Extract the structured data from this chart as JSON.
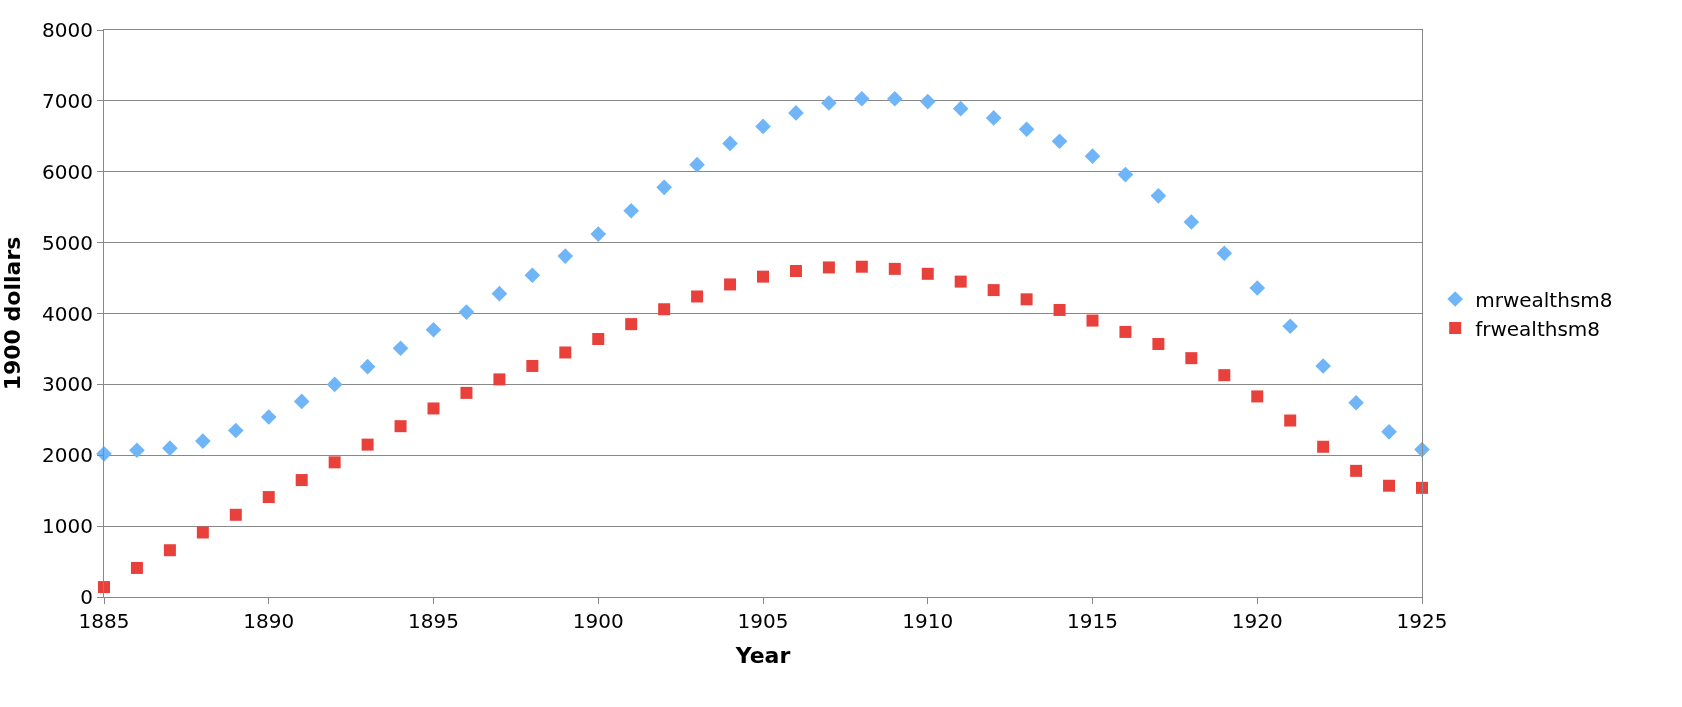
{
  "chart_data": {
    "type": "scatter",
    "xlabel": "Year",
    "ylabel": "1900 dollars",
    "x": [
      1885,
      1886,
      1887,
      1888,
      1889,
      1890,
      1891,
      1892,
      1893,
      1894,
      1895,
      1896,
      1897,
      1898,
      1899,
      1900,
      1901,
      1902,
      1903,
      1904,
      1905,
      1906,
      1907,
      1908,
      1909,
      1910,
      1911,
      1912,
      1913,
      1914,
      1915,
      1916,
      1917,
      1918,
      1919,
      1920,
      1921,
      1922,
      1923,
      1924,
      1925
    ],
    "series": [
      {
        "name": "mrwealthsm8",
        "color": "#6fb5f7",
        "marker": "diamond",
        "values": [
          2020,
          2070,
          2100,
          2200,
          2350,
          2540,
          2760,
          3000,
          3250,
          3510,
          3770,
          4020,
          4280,
          4540,
          4810,
          5120,
          5450,
          5780,
          6100,
          6400,
          6640,
          6830,
          6970,
          7030,
          7030,
          6990,
          6890,
          6760,
          6600,
          6430,
          6220,
          5960,
          5660,
          5290,
          4850,
          4360,
          3820,
          3260,
          2740,
          2330,
          2080
        ]
      },
      {
        "name": "frwealthsm8",
        "color": "#e8413c",
        "marker": "square",
        "values": [
          140,
          410,
          660,
          910,
          1160,
          1410,
          1650,
          1900,
          2150,
          2410,
          2660,
          2880,
          3070,
          3260,
          3450,
          3640,
          3850,
          4060,
          4240,
          4410,
          4520,
          4600,
          4650,
          4660,
          4630,
          4560,
          4450,
          4330,
          4200,
          4050,
          3900,
          3740,
          3570,
          3370,
          3130,
          2830,
          2490,
          2120,
          1780,
          1570,
          1540
        ]
      }
    ],
    "xlim": [
      1885,
      1925
    ],
    "xticks": [
      1885,
      1890,
      1895,
      1900,
      1905,
      1910,
      1915,
      1920,
      1925
    ],
    "ylim": [
      0,
      8000
    ],
    "yticks": [
      0,
      1000,
      2000,
      3000,
      4000,
      5000,
      6000,
      7000,
      8000
    ],
    "grid": "y",
    "legend": "right"
  }
}
